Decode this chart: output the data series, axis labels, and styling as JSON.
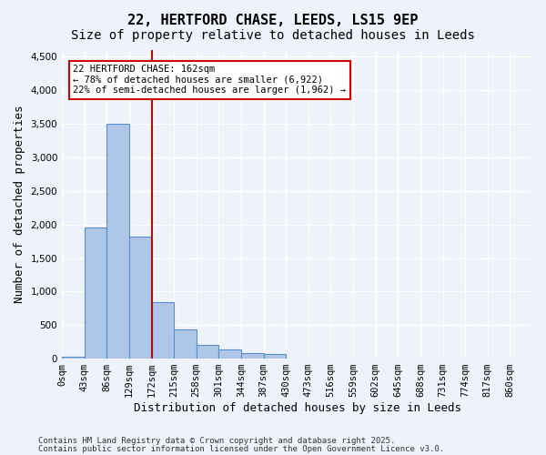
{
  "title_line1": "22, HERTFORD CHASE, LEEDS, LS15 9EP",
  "title_line2": "Size of property relative to detached houses in Leeds",
  "xlabel": "Distribution of detached houses by size in Leeds",
  "ylabel": "Number of detached properties",
  "bar_labels": [
    "0sqm",
    "43sqm",
    "86sqm",
    "129sqm",
    "172sqm",
    "215sqm",
    "258sqm",
    "301sqm",
    "344sqm",
    "387sqm",
    "430sqm",
    "473sqm",
    "516sqm",
    "559sqm",
    "602sqm",
    "645sqm",
    "688sqm",
    "731sqm",
    "774sqm",
    "817sqm",
    "860sqm"
  ],
  "bar_values": [
    30,
    1950,
    3500,
    1820,
    840,
    430,
    200,
    140,
    80,
    75,
    0,
    0,
    0,
    0,
    0,
    0,
    0,
    0,
    0,
    0,
    0
  ],
  "bar_color": "#aec6e8",
  "bar_edge_color": "#5a8fc2",
  "vline_x": 4,
  "vline_color": "#cc0000",
  "ylim": [
    0,
    4600
  ],
  "yticks": [
    0,
    500,
    1000,
    1500,
    2000,
    2500,
    3000,
    3500,
    4000,
    4500
  ],
  "annotation_text": "22 HERTFORD CHASE: 162sqm\n← 78% of detached houses are smaller (6,922)\n22% of semi-detached houses are larger (1,962) →",
  "annotation_box_color": "#ffffff",
  "annotation_box_edge": "#cc0000",
  "footer_line1": "Contains HM Land Registry data © Crown copyright and database right 2025.",
  "footer_line2": "Contains public sector information licensed under the Open Government Licence v3.0.",
  "bg_color": "#eef3fb",
  "plot_bg_color": "#eef3fb",
  "grid_color": "#ffffff",
  "title_fontsize": 11,
  "subtitle_fontsize": 10,
  "tick_fontsize": 7.5,
  "label_fontsize": 9
}
